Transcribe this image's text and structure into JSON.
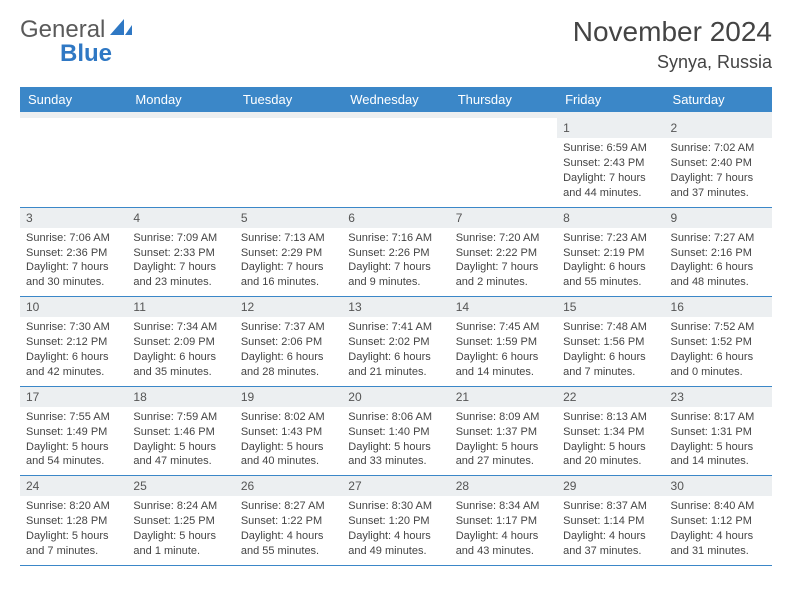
{
  "brand": {
    "part1": "General",
    "part2": "Blue"
  },
  "title": "November 2024",
  "location": "Synya, Russia",
  "colors": {
    "header_bg": "#3b87c8",
    "header_text": "#ffffff",
    "daynum_bg": "#eceff1",
    "border": "#3b87c8",
    "text": "#444444",
    "logo_gray": "#5a5a5a",
    "logo_blue": "#2f78c4",
    "page_bg": "#ffffff"
  },
  "day_headers": [
    "Sunday",
    "Monday",
    "Tuesday",
    "Wednesday",
    "Thursday",
    "Friday",
    "Saturday"
  ],
  "weeks": [
    [
      {
        "blank": true
      },
      {
        "blank": true
      },
      {
        "blank": true
      },
      {
        "blank": true
      },
      {
        "blank": true
      },
      {
        "n": "1",
        "sr": "Sunrise: 6:59 AM",
        "ss": "Sunset: 2:43 PM",
        "d1": "Daylight: 7 hours",
        "d2": "and 44 minutes."
      },
      {
        "n": "2",
        "sr": "Sunrise: 7:02 AM",
        "ss": "Sunset: 2:40 PM",
        "d1": "Daylight: 7 hours",
        "d2": "and 37 minutes."
      }
    ],
    [
      {
        "n": "3",
        "sr": "Sunrise: 7:06 AM",
        "ss": "Sunset: 2:36 PM",
        "d1": "Daylight: 7 hours",
        "d2": "and 30 minutes."
      },
      {
        "n": "4",
        "sr": "Sunrise: 7:09 AM",
        "ss": "Sunset: 2:33 PM",
        "d1": "Daylight: 7 hours",
        "d2": "and 23 minutes."
      },
      {
        "n": "5",
        "sr": "Sunrise: 7:13 AM",
        "ss": "Sunset: 2:29 PM",
        "d1": "Daylight: 7 hours",
        "d2": "and 16 minutes."
      },
      {
        "n": "6",
        "sr": "Sunrise: 7:16 AM",
        "ss": "Sunset: 2:26 PM",
        "d1": "Daylight: 7 hours",
        "d2": "and 9 minutes."
      },
      {
        "n": "7",
        "sr": "Sunrise: 7:20 AM",
        "ss": "Sunset: 2:22 PM",
        "d1": "Daylight: 7 hours",
        "d2": "and 2 minutes."
      },
      {
        "n": "8",
        "sr": "Sunrise: 7:23 AM",
        "ss": "Sunset: 2:19 PM",
        "d1": "Daylight: 6 hours",
        "d2": "and 55 minutes."
      },
      {
        "n": "9",
        "sr": "Sunrise: 7:27 AM",
        "ss": "Sunset: 2:16 PM",
        "d1": "Daylight: 6 hours",
        "d2": "and 48 minutes."
      }
    ],
    [
      {
        "n": "10",
        "sr": "Sunrise: 7:30 AM",
        "ss": "Sunset: 2:12 PM",
        "d1": "Daylight: 6 hours",
        "d2": "and 42 minutes."
      },
      {
        "n": "11",
        "sr": "Sunrise: 7:34 AM",
        "ss": "Sunset: 2:09 PM",
        "d1": "Daylight: 6 hours",
        "d2": "and 35 minutes."
      },
      {
        "n": "12",
        "sr": "Sunrise: 7:37 AM",
        "ss": "Sunset: 2:06 PM",
        "d1": "Daylight: 6 hours",
        "d2": "and 28 minutes."
      },
      {
        "n": "13",
        "sr": "Sunrise: 7:41 AM",
        "ss": "Sunset: 2:02 PM",
        "d1": "Daylight: 6 hours",
        "d2": "and 21 minutes."
      },
      {
        "n": "14",
        "sr": "Sunrise: 7:45 AM",
        "ss": "Sunset: 1:59 PM",
        "d1": "Daylight: 6 hours",
        "d2": "and 14 minutes."
      },
      {
        "n": "15",
        "sr": "Sunrise: 7:48 AM",
        "ss": "Sunset: 1:56 PM",
        "d1": "Daylight: 6 hours",
        "d2": "and 7 minutes."
      },
      {
        "n": "16",
        "sr": "Sunrise: 7:52 AM",
        "ss": "Sunset: 1:52 PM",
        "d1": "Daylight: 6 hours",
        "d2": "and 0 minutes."
      }
    ],
    [
      {
        "n": "17",
        "sr": "Sunrise: 7:55 AM",
        "ss": "Sunset: 1:49 PM",
        "d1": "Daylight: 5 hours",
        "d2": "and 54 minutes."
      },
      {
        "n": "18",
        "sr": "Sunrise: 7:59 AM",
        "ss": "Sunset: 1:46 PM",
        "d1": "Daylight: 5 hours",
        "d2": "and 47 minutes."
      },
      {
        "n": "19",
        "sr": "Sunrise: 8:02 AM",
        "ss": "Sunset: 1:43 PM",
        "d1": "Daylight: 5 hours",
        "d2": "and 40 minutes."
      },
      {
        "n": "20",
        "sr": "Sunrise: 8:06 AM",
        "ss": "Sunset: 1:40 PM",
        "d1": "Daylight: 5 hours",
        "d2": "and 33 minutes."
      },
      {
        "n": "21",
        "sr": "Sunrise: 8:09 AM",
        "ss": "Sunset: 1:37 PM",
        "d1": "Daylight: 5 hours",
        "d2": "and 27 minutes."
      },
      {
        "n": "22",
        "sr": "Sunrise: 8:13 AM",
        "ss": "Sunset: 1:34 PM",
        "d1": "Daylight: 5 hours",
        "d2": "and 20 minutes."
      },
      {
        "n": "23",
        "sr": "Sunrise: 8:17 AM",
        "ss": "Sunset: 1:31 PM",
        "d1": "Daylight: 5 hours",
        "d2": "and 14 minutes."
      }
    ],
    [
      {
        "n": "24",
        "sr": "Sunrise: 8:20 AM",
        "ss": "Sunset: 1:28 PM",
        "d1": "Daylight: 5 hours",
        "d2": "and 7 minutes."
      },
      {
        "n": "25",
        "sr": "Sunrise: 8:24 AM",
        "ss": "Sunset: 1:25 PM",
        "d1": "Daylight: 5 hours",
        "d2": "and 1 minute."
      },
      {
        "n": "26",
        "sr": "Sunrise: 8:27 AM",
        "ss": "Sunset: 1:22 PM",
        "d1": "Daylight: 4 hours",
        "d2": "and 55 minutes."
      },
      {
        "n": "27",
        "sr": "Sunrise: 8:30 AM",
        "ss": "Sunset: 1:20 PM",
        "d1": "Daylight: 4 hours",
        "d2": "and 49 minutes."
      },
      {
        "n": "28",
        "sr": "Sunrise: 8:34 AM",
        "ss": "Sunset: 1:17 PM",
        "d1": "Daylight: 4 hours",
        "d2": "and 43 minutes."
      },
      {
        "n": "29",
        "sr": "Sunrise: 8:37 AM",
        "ss": "Sunset: 1:14 PM",
        "d1": "Daylight: 4 hours",
        "d2": "and 37 minutes."
      },
      {
        "n": "30",
        "sr": "Sunrise: 8:40 AM",
        "ss": "Sunset: 1:12 PM",
        "d1": "Daylight: 4 hours",
        "d2": "and 31 minutes."
      }
    ]
  ]
}
